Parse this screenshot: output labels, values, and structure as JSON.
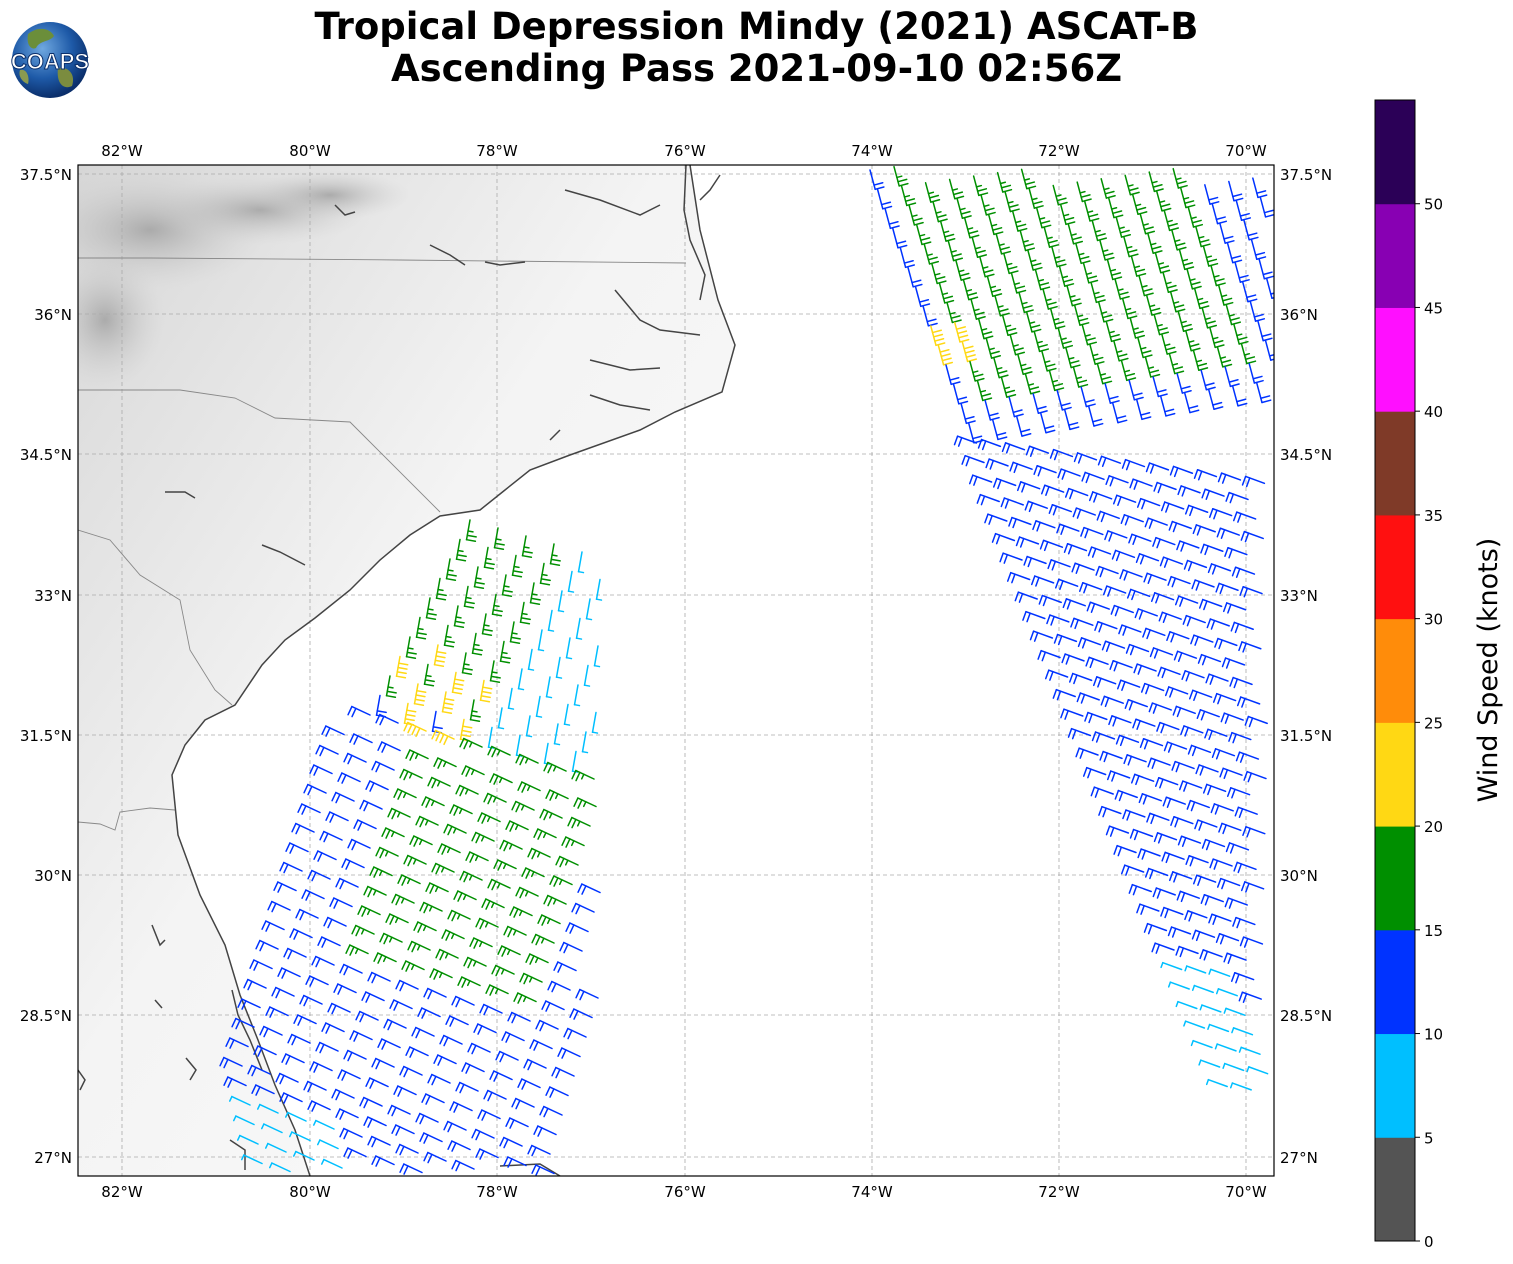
{
  "title": {
    "line1": "Tropical Depression Mindy (2021) ASCAT-B",
    "line2": "Ascending Pass 2021-09-10 02:56Z"
  },
  "logo": {
    "text": "COAPS"
  },
  "map": {
    "lon_range": [
      -82.5,
      -69.7
    ],
    "lat_range": [
      26.8,
      37.6
    ],
    "lon_ticks": [
      "82°W",
      "80°W",
      "78°W",
      "76°W",
      "74°W",
      "72°W",
      "70°W"
    ],
    "lat_ticks": [
      "37.5°N",
      "36°N",
      "34.5°N",
      "33°N",
      "31.5°N",
      "30°N",
      "28.5°N",
      "27°N"
    ],
    "gridlines": true
  },
  "colorbar": {
    "label": "Wind Speed (knots)",
    "ticks": [
      "0",
      "5",
      "10",
      "15",
      "20",
      "25",
      "30",
      "35",
      "40",
      "45",
      "50"
    ],
    "bins": [
      {
        "min": 0,
        "max": 5,
        "color": "#545454"
      },
      {
        "min": 5,
        "max": 10,
        "color": "#00bfff"
      },
      {
        "min": 10,
        "max": 15,
        "color": "#0033ff"
      },
      {
        "min": 15,
        "max": 20,
        "color": "#008f00"
      },
      {
        "min": 20,
        "max": 25,
        "color": "#ffd814"
      },
      {
        "min": 25,
        "max": 30,
        "color": "#ff8c0a"
      },
      {
        "min": 30,
        "max": 35,
        "color": "#ff1010"
      },
      {
        "min": 35,
        "max": 40,
        "color": "#7f3a28"
      },
      {
        "min": 40,
        "max": 45,
        "color": "#ff0fff"
      },
      {
        "min": 45,
        "max": 50,
        "color": "#8800b3"
      },
      {
        "min": 50,
        "max": 55,
        "color": "#2b0057"
      }
    ]
  }
}
